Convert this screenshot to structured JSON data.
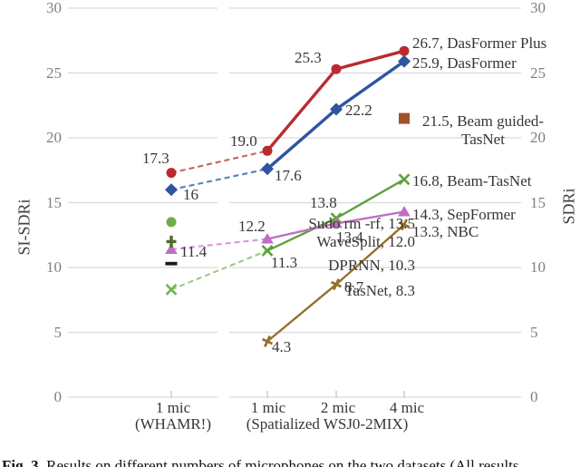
{
  "chart_data": {
    "type": "line",
    "categories": [
      "1 mic (WHAMR!)",
      "1 mic (Spatialized WSJ0-2MIX)",
      "2 mic (Spatialized WSJ0-2MIX)",
      "4 mic (Spatialized WSJ0-2MIX)"
    ],
    "ylim": [
      0,
      30
    ],
    "yticks": [
      30,
      25,
      20,
      15,
      10,
      5,
      0
    ],
    "ylabel_left": "SI-SDRi",
    "ylabel_right": "SDRi",
    "grid": true,
    "legend_position": "inline-data-labels",
    "series": [
      {
        "name": "DasFormer Plus",
        "color": "#B92B31",
        "dash_color": "#C9605E",
        "marker": "circle",
        "values": [
          17.3,
          19.0,
          25.3,
          26.7
        ]
      },
      {
        "name": "DasFormer",
        "color": "#2E55A0",
        "dash_color": "#5B7EBE",
        "marker": "diamond",
        "values": [
          16,
          17.6,
          22.2,
          25.9
        ]
      },
      {
        "name": "Beam guided-TasNet",
        "color": "#A0522D",
        "marker": "square",
        "values": [
          null,
          null,
          null,
          21.5
        ]
      },
      {
        "name": "Beam-TasNet",
        "color": "#5FA13D",
        "marker": "x",
        "values": [
          null,
          11.3,
          13.8,
          16.8
        ]
      },
      {
        "name": "SepFormer",
        "color": "#C06EC3",
        "dash_color": "#D598D8",
        "marker": "triangle",
        "values": [
          11.4,
          12.2,
          13.4,
          14.3
        ]
      },
      {
        "name": "NBC",
        "color": "#96702A",
        "marker": "plus-tilt",
        "values": [
          null,
          4.3,
          8.7,
          13.3
        ]
      },
      {
        "name": "Sudo rm -rf",
        "color": "#70AD47",
        "marker": "circle",
        "values": [
          13.5,
          null,
          null,
          null
        ]
      },
      {
        "name": "WaveSplit",
        "color": "#4D6B2E",
        "marker": "plus",
        "values": [
          12.0,
          null,
          null,
          null
        ]
      },
      {
        "name": "DPRNN",
        "color": "#1A1A1A",
        "marker": "dash",
        "values": [
          10.3,
          null,
          null,
          null
        ]
      },
      {
        "name": "TasNet",
        "color": "#72B64E",
        "dash_color": "#9BCA7B",
        "marker": "x",
        "values": [
          8.3,
          null,
          null,
          null
        ]
      }
    ]
  },
  "axis": {
    "left_title": "SI-SDRi",
    "right_title": "SDRi",
    "x_row1": [
      "1 mic",
      "1 mic",
      "2 mic",
      "4 mic"
    ],
    "x_group_whamr": "(WHAMR!)",
    "x_group_spatialized": "(Spatialized WSJ0-2MIX)"
  },
  "annotations": [
    {
      "id": "v17_3",
      "text": "17.3"
    },
    {
      "id": "v16",
      "text": "16"
    },
    {
      "id": "v19_0",
      "text": "19.0"
    },
    {
      "id": "v17_6",
      "text": "17.6"
    },
    {
      "id": "v25_3",
      "text": "25.3"
    },
    {
      "id": "v22_2",
      "text": "22.2"
    },
    {
      "id": "v26_7",
      "text": "26.7, DasFormer Plus"
    },
    {
      "id": "v25_9",
      "text": "25.9, DasFormer"
    },
    {
      "id": "v21_5",
      "text": "21.5, Beam guided-TasNet"
    },
    {
      "id": "v16_8",
      "text": "16.8, Beam-TasNet"
    },
    {
      "id": "v14_3",
      "text": "14.3, SepFormer"
    },
    {
      "id": "v13_3",
      "text": "13.3, NBC"
    },
    {
      "id": "v13_8",
      "text": "13.8"
    },
    {
      "id": "v12_2",
      "text": "12.2"
    },
    {
      "id": "v13_4",
      "text": "13.4"
    },
    {
      "id": "v11_3",
      "text": "11.3"
    },
    {
      "id": "v11_4",
      "text": "11.4"
    },
    {
      "id": "v8_7",
      "text": "8.7"
    },
    {
      "id": "v4_3",
      "text": "4.3"
    },
    {
      "id": "sudo",
      "text": "Sudo rm -rf, 13.5"
    },
    {
      "id": "wavesplit",
      "text": "WaveSplit, 12.0"
    },
    {
      "id": "dprnn",
      "text": "DPRNN, 10.3"
    },
    {
      "id": "tasnet",
      "text": "TasNet, 8.3"
    }
  ],
  "caption": {
    "prefix": "Fig. 3.",
    "body": "Results on different numbers of microphones on the two datasets (All results"
  },
  "colors": {
    "gridline": "#D9D9D9",
    "tick": "#BFBFBF",
    "axis_text": "#7F7F7F",
    "label_text": "#363636"
  }
}
